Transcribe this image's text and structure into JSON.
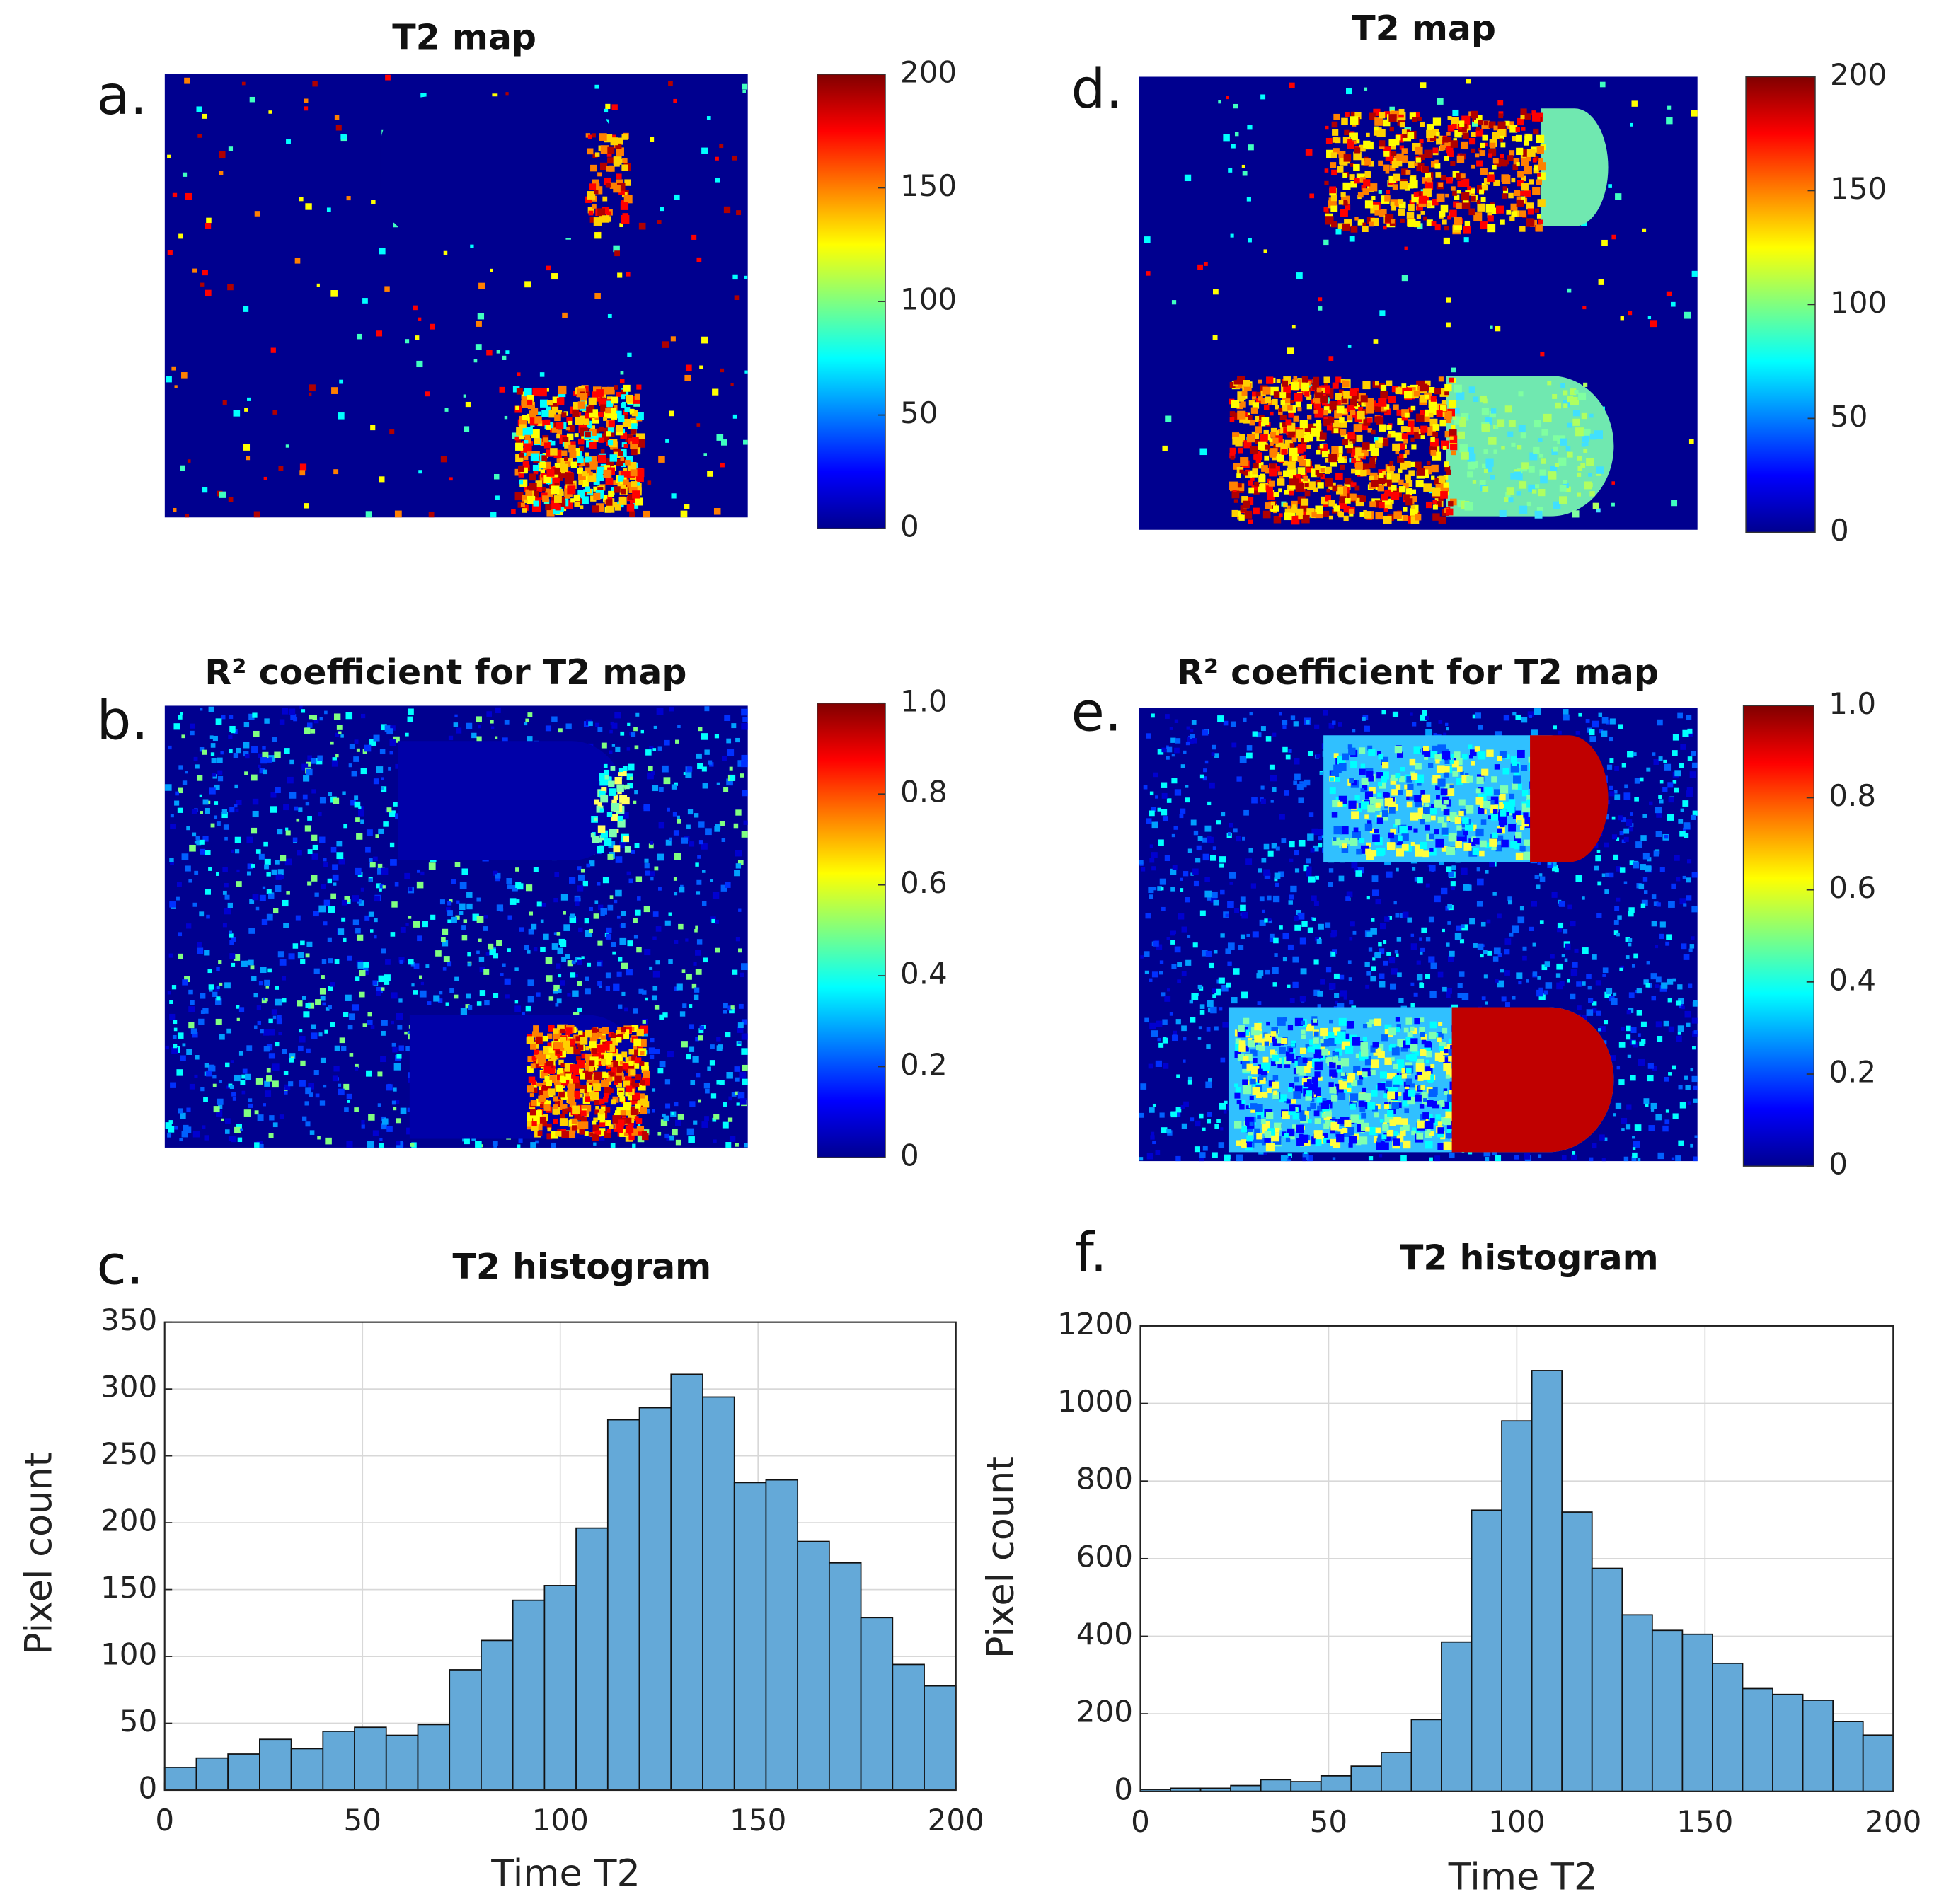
{
  "chart_data": [
    {
      "type": "heatmap",
      "panel": "a.",
      "title": "T2 map",
      "clim": [
        0,
        200
      ],
      "cticks": [
        0,
        50,
        100,
        150,
        200
      ]
    },
    {
      "type": "heatmap",
      "panel": "b.",
      "title": "R² coefficient for T2 map",
      "clim": [
        0,
        1
      ],
      "cticks": [
        0,
        {
          "value": 0.2,
          "label": "0.2"
        },
        {
          "value": 0.4,
          "label": "0.4"
        },
        {
          "value": 0.6,
          "label": "0.6"
        },
        {
          "value": 0.8,
          "label": "0.8"
        },
        {
          "value": 1,
          "label": "1.0"
        }
      ]
    },
    {
      "type": "histogram",
      "panel": "c.",
      "title": "T2 histogram",
      "xlabel": "Time T2",
      "ylabel": "Pixel count",
      "color": "#64a9d8",
      "bins": [
        0,
        8,
        16,
        24,
        32,
        40,
        48,
        56,
        64,
        72,
        80,
        88,
        96,
        104,
        112,
        120,
        128,
        136,
        144,
        152,
        160,
        168,
        176,
        184,
        192,
        200
      ],
      "counts": [
        17,
        24,
        27,
        38,
        31,
        44,
        47,
        41,
        49,
        90,
        112,
        142,
        153,
        196,
        277,
        286,
        311,
        294,
        230,
        232,
        186,
        170,
        129,
        94,
        78
      ],
      "xlim": [
        0,
        200
      ],
      "xticks": [
        0,
        50,
        100,
        150,
        200
      ],
      "ylim": [
        0,
        350
      ],
      "yticks": [
        0,
        50,
        100,
        150,
        200,
        250,
        300,
        350
      ],
      "grid": true
    },
    {
      "type": "heatmap",
      "panel": "d.",
      "title": "T2 map",
      "clim": [
        0,
        200
      ],
      "cticks": [
        0,
        50,
        100,
        150,
        200
      ]
    },
    {
      "type": "heatmap",
      "panel": "e.",
      "title": "R² coefficient for T2 map",
      "clim": [
        0,
        1
      ],
      "cticks": [
        0,
        {
          "value": 0.2,
          "label": "0.2"
        },
        {
          "value": 0.4,
          "label": "0.4"
        },
        {
          "value": 0.6,
          "label": "0.6"
        },
        {
          "value": 0.8,
          "label": "0.8"
        },
        {
          "value": 1,
          "label": "1.0"
        }
      ]
    },
    {
      "type": "histogram",
      "panel": "f.",
      "title": "T2 histogram",
      "xlabel": "Time T2",
      "ylabel": "Pixel count",
      "color": "#64a9d8",
      "bins": [
        0,
        8,
        16,
        24,
        32,
        40,
        48,
        56,
        64,
        72,
        80,
        88,
        96,
        104,
        112,
        120,
        128,
        136,
        144,
        152,
        160,
        168,
        176,
        184,
        192,
        200
      ],
      "counts": [
        5,
        8,
        8,
        15,
        30,
        25,
        40,
        65,
        100,
        185,
        385,
        725,
        955,
        1085,
        720,
        575,
        455,
        415,
        405,
        330,
        265,
        250,
        235,
        180,
        145
      ],
      "xlim": [
        0,
        200
      ],
      "xticks": [
        0,
        50,
        100,
        150,
        200
      ],
      "ylim": [
        0,
        1200
      ],
      "yticks": [
        0,
        200,
        400,
        600,
        800,
        1000,
        1200
      ],
      "grid": true
    }
  ]
}
